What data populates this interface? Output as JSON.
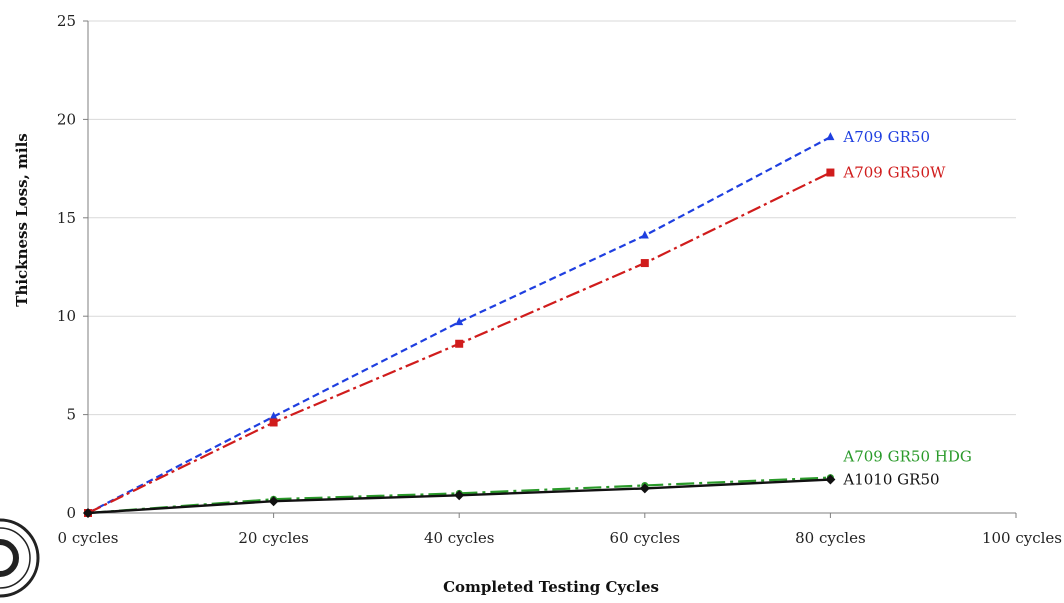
{
  "chart_data": {
    "type": "line",
    "title": "",
    "xlabel": "Completed Testing Cycles",
    "ylabel": "Thickness Loss, mils",
    "x": [
      0,
      20,
      40,
      60,
      80
    ],
    "xlim": [
      0,
      100
    ],
    "ylim": [
      0,
      25
    ],
    "x_ticks": [
      0,
      20,
      40,
      60,
      80,
      100
    ],
    "x_tick_labels": [
      "0 cycles",
      "20 cycles",
      "40 cycles",
      "60 cycles",
      "80 cycles",
      "100 cycles"
    ],
    "y_ticks": [
      0,
      5,
      10,
      15,
      20,
      25
    ],
    "y_tick_labels": [
      "0",
      "5",
      "10",
      "15",
      "20",
      "25"
    ],
    "grid": "horizontal",
    "legend": "inline labels at series end",
    "series": [
      {
        "name": "A709 GR50",
        "values": [
          0,
          4.9,
          9.7,
          14.1,
          19.1
        ],
        "color": "#1f3fe0",
        "line_style": "dashed",
        "marker": "triangle"
      },
      {
        "name": "A709 GR50W",
        "values": [
          0,
          4.6,
          8.6,
          12.7,
          17.3
        ],
        "color": "#d01c1c",
        "line_style": "dash-dot",
        "marker": "square"
      },
      {
        "name": "A709 GR50 HDG",
        "values": [
          0,
          0.7,
          1.0,
          1.4,
          1.8
        ],
        "color": "#2a9a2a",
        "line_style": "long-dash-dot",
        "marker": "circle"
      },
      {
        "name": "A1010 GR50",
        "values": [
          0,
          0.6,
          0.9,
          1.25,
          1.7
        ],
        "color": "#111111",
        "line_style": "solid",
        "marker": "diamond"
      }
    ]
  }
}
